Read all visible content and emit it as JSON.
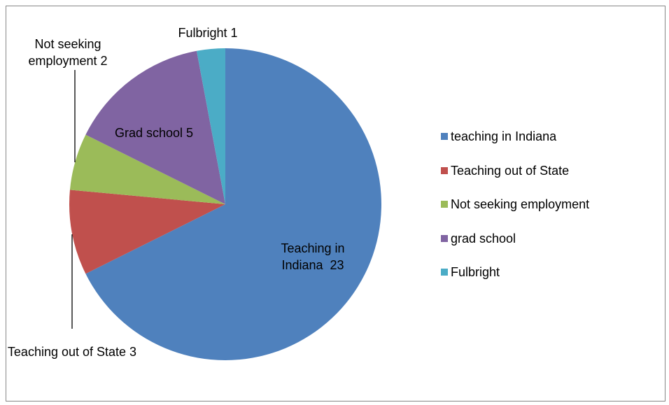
{
  "chart_data": {
    "type": "pie",
    "categories": [
      "teaching in Indiana",
      "Teaching out of State",
      "Not seeking employment",
      "grad school",
      "Fulbright"
    ],
    "values": [
      23,
      3,
      2,
      5,
      1
    ],
    "value_labels": [
      "Teaching in Indiana  23",
      "Teaching out of State 3",
      "Not seeking employment 2",
      "Grad school 5",
      "Fulbright 1"
    ],
    "colors": [
      "#4f81bd",
      "#c0504d",
      "#9bbb59",
      "#8064a2",
      "#4bacc6"
    ],
    "legend": "right"
  }
}
